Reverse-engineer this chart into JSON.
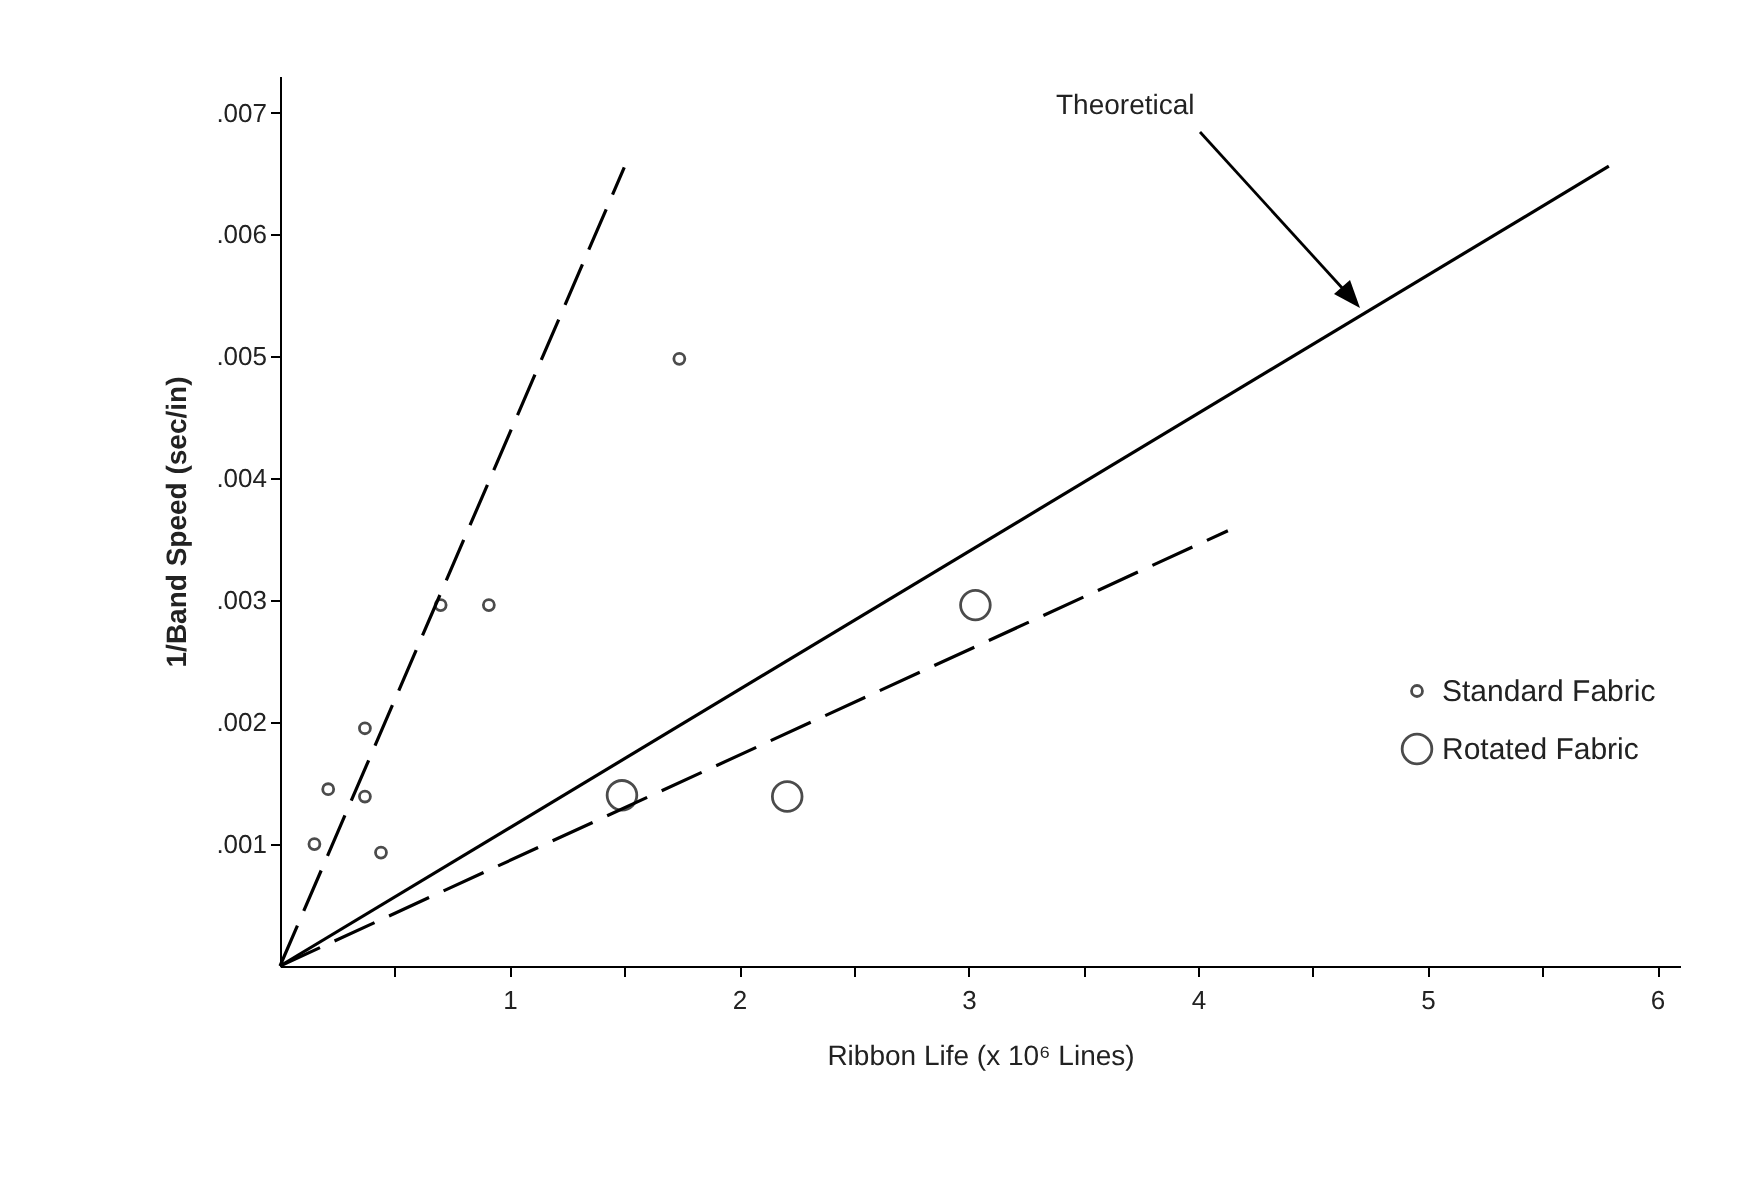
{
  "chart_data": {
    "type": "scatter",
    "xlabel": "Ribbon Life (x 10⁶ Lines)",
    "ylabel": "1/Band Speed (sec/in)",
    "xlim": [
      0,
      6.1
    ],
    "ylim": [
      0,
      0.0073
    ],
    "xticks": [
      {
        "value": 0.5,
        "label": null
      },
      1,
      {
        "value": 1.5,
        "label": null
      },
      2,
      {
        "value": 2.5,
        "label": null
      },
      3,
      {
        "value": 3.5,
        "label": null
      },
      4,
      {
        "value": 4.5,
        "label": null
      },
      5,
      {
        "value": 5.5,
        "label": null
      },
      6
    ],
    "yticks": [
      {
        "value": 0.001,
        "label": ".001"
      },
      {
        "value": 0.002,
        "label": ".002"
      },
      {
        "value": 0.003,
        "label": ".003"
      },
      {
        "value": 0.004,
        "label": ".004"
      },
      {
        "value": 0.005,
        "label": ".005"
      },
      {
        "value": 0.006,
        "label": ".006"
      },
      {
        "value": 0.007,
        "label": ".007"
      }
    ],
    "grid": false,
    "legend": "right",
    "marker": "circle",
    "series": [
      {
        "name": "Standard Fabric",
        "color": "#000000",
        "x": [
          0.15,
          0.21,
          0.37,
          0.37,
          0.44,
          0.7,
          0.91,
          1.74
        ],
        "values": [
          0.001,
          0.00145,
          0.00195,
          0.00139,
          0.00093,
          0.00296,
          0.00296,
          0.00498
        ]
      },
      {
        "name": "Rotated Fabric",
        "color": "#000000",
        "x": [
          1.49,
          2.21,
          3.03
        ],
        "values": [
          0.0014,
          0.00139,
          0.00296
        ]
      },
      {
        "type": "line",
        "color": "#000000",
        "line_style": "dashed",
        "marker": "none",
        "x": [
          0,
          1.5
        ],
        "values": [
          0,
          0.00655
        ]
      },
      {
        "type": "line",
        "color": "#000000",
        "line_style": "solid",
        "marker": "none",
        "x": [
          0,
          5.79
        ],
        "values": [
          0,
          0.00656
        ]
      },
      {
        "type": "line",
        "color": "#000000",
        "line_style": "dashed",
        "marker": "none",
        "x": [
          0,
          4.13
        ],
        "values": [
          0,
          0.00357
        ]
      }
    ],
    "annotations": [
      "Theoretical"
    ]
  }
}
